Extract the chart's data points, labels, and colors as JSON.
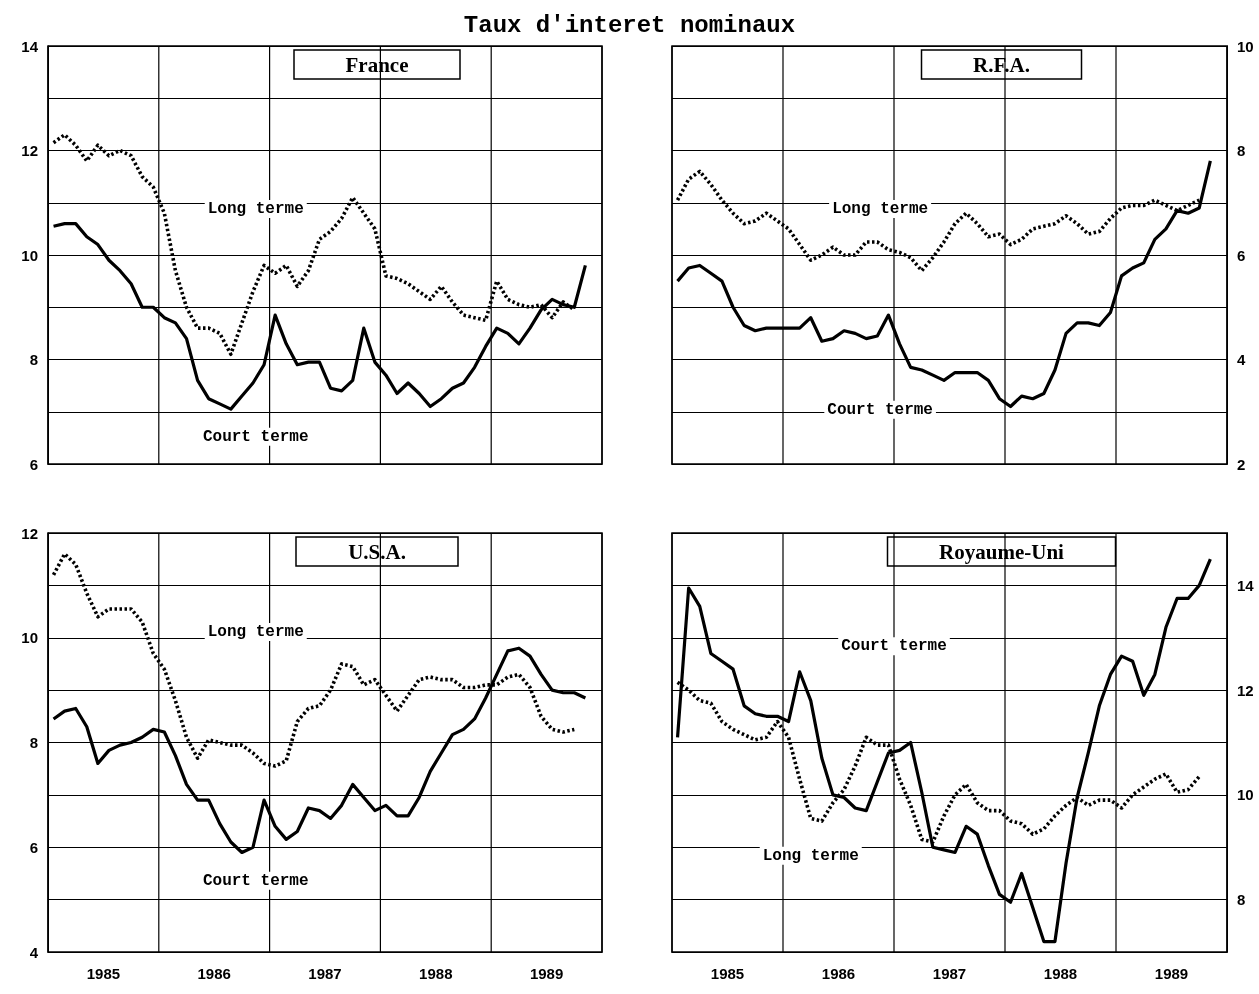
{
  "chart_data": [
    {
      "type": "line",
      "title": "France",
      "annotations": [
        "Taux d'interet nominaux"
      ],
      "x": [
        1985.05,
        1985.15,
        1985.25,
        1985.35,
        1985.45,
        1985.55,
        1985.65,
        1985.75,
        1985.85,
        1985.95,
        1986.05,
        1986.15,
        1986.25,
        1986.35,
        1986.45,
        1986.55,
        1986.65,
        1986.75,
        1986.85,
        1986.95,
        1987.05,
        1987.15,
        1987.25,
        1987.35,
        1987.45,
        1987.55,
        1987.65,
        1987.75,
        1987.85,
        1987.95,
        1988.05,
        1988.15,
        1988.25,
        1988.35,
        1988.45,
        1988.55,
        1988.65,
        1988.75,
        1988.85,
        1988.95,
        1989.05,
        1989.15,
        1989.25,
        1989.35,
        1989.45,
        1989.55,
        1989.65,
        1989.75,
        1989.85
      ],
      "series": [
        {
          "name": "Court terme",
          "color": "#000000",
          "line_style": "solid",
          "values": [
            10.55,
            10.6,
            10.6,
            10.35,
            10.2,
            9.9,
            9.7,
            9.45,
            9.0,
            9.0,
            8.8,
            8.7,
            8.4,
            7.6,
            7.25,
            7.15,
            7.05,
            7.3,
            7.55,
            7.9,
            8.85,
            8.3,
            7.9,
            7.95,
            7.95,
            7.45,
            7.4,
            7.6,
            8.6,
            7.95,
            7.7,
            7.35,
            7.55,
            7.35,
            7.1,
            7.25,
            7.45,
            7.55,
            7.85,
            8.25,
            8.6,
            8.5,
            8.3,
            8.6,
            8.95,
            9.15,
            9.05,
            9.0,
            9.8
          ]
        },
        {
          "name": "Long terme",
          "color": "#000000",
          "line_style": "dotted",
          "values": [
            12.15,
            12.3,
            12.1,
            11.8,
            12.1,
            11.9,
            12.0,
            11.9,
            11.5,
            11.3,
            10.8,
            9.7,
            9.0,
            8.6,
            8.6,
            8.5,
            8.1,
            8.7,
            9.3,
            9.8,
            9.65,
            9.8,
            9.4,
            9.7,
            10.3,
            10.45,
            10.7,
            11.1,
            10.8,
            10.5,
            9.6,
            9.55,
            9.45,
            9.3,
            9.15,
            9.4,
            9.1,
            8.85,
            8.8,
            8.75,
            9.5,
            9.15,
            9.05,
            9.0,
            9.05,
            8.8,
            9.1,
            8.95,
            null
          ]
        }
      ],
      "xlim": [
        1985,
        1990
      ],
      "xticks": [
        {
          "value": 1985,
          "label": null
        },
        {
          "value": 1986,
          "label": null
        },
        {
          "value": 1987,
          "label": null
        },
        {
          "value": 1988,
          "label": null
        },
        {
          "value": 1989,
          "label": null
        },
        {
          "value": 1990,
          "label": null
        }
      ],
      "ylim": [
        6,
        14
      ],
      "yticks": [
        6,
        {
          "value": 7,
          "label": null
        },
        8,
        {
          "value": 9,
          "label": null
        },
        10,
        {
          "value": 11,
          "label": null
        },
        12,
        {
          "value": 13,
          "label": null
        },
        14
      ],
      "grid": true,
      "tick_labels": "y"
    },
    {
      "type": "line",
      "title": "R.F.A.",
      "x": [
        1985.05,
        1985.15,
        1985.25,
        1985.35,
        1985.45,
        1985.55,
        1985.65,
        1985.75,
        1985.85,
        1985.95,
        1986.05,
        1986.15,
        1986.25,
        1986.35,
        1986.45,
        1986.55,
        1986.65,
        1986.75,
        1986.85,
        1986.95,
        1987.05,
        1987.15,
        1987.25,
        1987.35,
        1987.45,
        1987.55,
        1987.65,
        1987.75,
        1987.85,
        1987.95,
        1988.05,
        1988.15,
        1988.25,
        1988.35,
        1988.45,
        1988.55,
        1988.65,
        1988.75,
        1988.85,
        1988.95,
        1989.05,
        1989.15,
        1989.25,
        1989.35,
        1989.45,
        1989.55,
        1989.65,
        1989.75,
        1989.85
      ],
      "series": [
        {
          "name": "Court terme",
          "color": "#000000",
          "line_style": "solid",
          "values": [
            5.5,
            5.75,
            5.8,
            5.65,
            5.5,
            5.0,
            4.65,
            4.55,
            4.6,
            4.6,
            4.6,
            4.6,
            4.8,
            4.35,
            4.4,
            4.55,
            4.5,
            4.4,
            4.45,
            4.85,
            4.3,
            3.85,
            3.8,
            3.7,
            3.6,
            3.75,
            3.75,
            3.75,
            3.6,
            3.25,
            3.1,
            3.3,
            3.25,
            3.35,
            3.8,
            4.5,
            4.7,
            4.7,
            4.65,
            4.9,
            5.6,
            5.75,
            5.85,
            6.3,
            6.5,
            6.85,
            6.8,
            6.9,
            7.8
          ]
        },
        {
          "name": "Long terme",
          "color": "#000000",
          "line_style": "dotted",
          "values": [
            7.05,
            7.45,
            7.6,
            7.35,
            7.05,
            6.8,
            6.6,
            6.65,
            6.8,
            6.65,
            6.5,
            6.2,
            5.9,
            6.0,
            6.15,
            6.0,
            6.0,
            6.25,
            6.25,
            6.1,
            6.05,
            5.95,
            5.7,
            5.95,
            6.25,
            6.6,
            6.8,
            6.6,
            6.35,
            6.4,
            6.2,
            6.3,
            6.5,
            6.55,
            6.6,
            6.75,
            6.6,
            6.4,
            6.45,
            6.7,
            6.9,
            6.95,
            6.95,
            7.05,
            6.95,
            6.85,
            6.95,
            7.05,
            null
          ]
        }
      ],
      "xlim": [
        1985,
        1990
      ],
      "xticks": [
        {
          "value": 1985,
          "label": null
        },
        {
          "value": 1986,
          "label": null
        },
        {
          "value": 1987,
          "label": null
        },
        {
          "value": 1988,
          "label": null
        },
        {
          "value": 1989,
          "label": null
        },
        {
          "value": 1990,
          "label": null
        }
      ],
      "ylim": [
        2,
        10
      ],
      "yticks": [
        2,
        {
          "value": 3,
          "label": null
        },
        4,
        {
          "value": 5,
          "label": null
        },
        6,
        {
          "value": 7,
          "label": null
        },
        8,
        {
          "value": 9,
          "label": null
        },
        10
      ],
      "grid": true,
      "tick_labels": "y"
    },
    {
      "type": "line",
      "title": "U.S.A.",
      "x": [
        1985.05,
        1985.15,
        1985.25,
        1985.35,
        1985.45,
        1985.55,
        1985.65,
        1985.75,
        1985.85,
        1985.95,
        1986.05,
        1986.15,
        1986.25,
        1986.35,
        1986.45,
        1986.55,
        1986.65,
        1986.75,
        1986.85,
        1986.95,
        1987.05,
        1987.15,
        1987.25,
        1987.35,
        1987.45,
        1987.55,
        1987.65,
        1987.75,
        1987.85,
        1987.95,
        1988.05,
        1988.15,
        1988.25,
        1988.35,
        1988.45,
        1988.55,
        1988.65,
        1988.75,
        1988.85,
        1988.95,
        1989.05,
        1989.15,
        1989.25,
        1989.35,
        1989.45,
        1989.55,
        1989.65,
        1989.75,
        1989.85
      ],
      "series": [
        {
          "name": "Court terme",
          "color": "#000000",
          "line_style": "solid",
          "values": [
            8.45,
            8.6,
            8.65,
            8.3,
            7.6,
            7.85,
            7.95,
            8.0,
            8.1,
            8.25,
            8.2,
            7.75,
            7.2,
            6.9,
            6.9,
            6.45,
            6.1,
            5.9,
            6.0,
            6.9,
            6.4,
            6.15,
            6.3,
            6.75,
            6.7,
            6.55,
            6.8,
            7.2,
            6.95,
            6.7,
            6.8,
            6.6,
            6.6,
            6.95,
            7.45,
            7.8,
            8.15,
            8.25,
            8.45,
            8.85,
            9.3,
            9.75,
            9.8,
            9.65,
            9.3,
            9.0,
            8.95,
            8.95,
            8.85
          ]
        },
        {
          "name": "Long terme",
          "color": "#000000",
          "line_style": "dotted",
          "values": [
            11.2,
            11.6,
            11.4,
            10.85,
            10.4,
            10.55,
            10.55,
            10.55,
            10.3,
            9.7,
            9.4,
            8.8,
            8.1,
            7.7,
            8.05,
            8.0,
            7.95,
            7.95,
            7.8,
            7.6,
            7.55,
            7.65,
            8.4,
            8.65,
            8.7,
            9.0,
            9.5,
            9.45,
            9.1,
            9.2,
            8.9,
            8.6,
            8.9,
            9.2,
            9.25,
            9.2,
            9.2,
            9.05,
            9.05,
            9.1,
            9.1,
            9.25,
            9.3,
            9.05,
            8.5,
            8.25,
            8.2,
            8.25,
            null
          ]
        }
      ],
      "xlim": [
        1985,
        1990
      ],
      "xticks": [
        {
          "value": 1985,
          "label": null
        },
        {
          "value": 1985.5,
          "label": "1985"
        },
        {
          "value": 1986,
          "label": null
        },
        {
          "value": 1986.5,
          "label": "1986"
        },
        {
          "value": 1987,
          "label": null
        },
        {
          "value": 1987.5,
          "label": "1987"
        },
        {
          "value": 1988,
          "label": null
        },
        {
          "value": 1988.5,
          "label": "1988"
        },
        {
          "value": 1989,
          "label": null
        },
        {
          "value": 1989.5,
          "label": "1989"
        },
        {
          "value": 1990,
          "label": null
        }
      ],
      "ylim": [
        4,
        12
      ],
      "yticks": [
        4,
        {
          "value": 5,
          "label": null
        },
        6,
        {
          "value": 7,
          "label": null
        },
        8,
        {
          "value": 9,
          "label": null
        },
        10,
        {
          "value": 11,
          "label": null
        },
        12
      ],
      "grid": true
    },
    {
      "type": "line",
      "title": "Royaume-Uni",
      "x": [
        1985.05,
        1985.15,
        1985.25,
        1985.35,
        1985.45,
        1985.55,
        1985.65,
        1985.75,
        1985.85,
        1985.95,
        1986.05,
        1986.15,
        1986.25,
        1986.35,
        1986.45,
        1986.55,
        1986.65,
        1986.75,
        1986.85,
        1986.95,
        1987.05,
        1987.15,
        1987.25,
        1987.35,
        1987.45,
        1987.55,
        1987.65,
        1987.75,
        1987.85,
        1987.95,
        1988.05,
        1988.15,
        1988.25,
        1988.35,
        1988.45,
        1988.55,
        1988.65,
        1988.75,
        1988.85,
        1988.95,
        1989.05,
        1989.15,
        1989.25,
        1989.35,
        1989.45,
        1989.55,
        1989.65,
        1989.75,
        1989.85
      ],
      "series": [
        {
          "name": "Court terme",
          "color": "#000000",
          "line_style": "solid",
          "values": [
            11.1,
            13.95,
            13.6,
            12.7,
            12.55,
            12.4,
            11.7,
            11.55,
            11.5,
            11.5,
            11.4,
            12.35,
            11.8,
            10.7,
            10.0,
            9.95,
            9.75,
            9.7,
            10.25,
            10.8,
            10.85,
            11.0,
            10.05,
            9.0,
            8.95,
            8.9,
            9.4,
            9.25,
            8.65,
            8.1,
            7.95,
            8.5,
            7.85,
            7.2,
            7.2,
            8.7,
            9.95,
            10.8,
            11.7,
            12.3,
            12.65,
            12.55,
            11.9,
            12.3,
            13.2,
            13.75,
            13.75,
            14.0,
            14.5
          ]
        },
        {
          "name": "Long terme",
          "color": "#000000",
          "line_style": "dotted",
          "values": [
            12.15,
            12.0,
            11.8,
            11.75,
            11.4,
            11.25,
            11.15,
            11.05,
            11.1,
            11.4,
            11.1,
            10.3,
            9.55,
            9.5,
            9.85,
            10.1,
            10.55,
            11.1,
            10.95,
            10.95,
            10.3,
            9.8,
            9.15,
            9.1,
            9.6,
            10.0,
            10.2,
            9.85,
            9.7,
            9.7,
            9.5,
            9.45,
            9.25,
            9.35,
            9.6,
            9.8,
            9.95,
            9.8,
            9.9,
            9.9,
            9.75,
            10.0,
            10.15,
            10.3,
            10.4,
            10.05,
            10.1,
            10.35,
            null
          ]
        }
      ],
      "xlim": [
        1985,
        1990
      ],
      "xticks": [
        {
          "value": 1985,
          "label": null
        },
        {
          "value": 1985.5,
          "label": "1985"
        },
        {
          "value": 1986,
          "label": null
        },
        {
          "value": 1986.5,
          "label": "1986"
        },
        {
          "value": 1987,
          "label": null
        },
        {
          "value": 1987.5,
          "label": "1987"
        },
        {
          "value": 1988,
          "label": null
        },
        {
          "value": 1988.5,
          "label": "1988"
        },
        {
          "value": 1989,
          "label": null
        },
        {
          "value": 1989.5,
          "label": "1989"
        },
        {
          "value": 1990,
          "label": null
        }
      ],
      "ylim": [
        7,
        15
      ],
      "yticks": [
        {
          "value": 7,
          "label": null
        },
        8,
        {
          "value": 9,
          "label": null
        },
        10,
        {
          "value": 11,
          "label": null
        },
        12,
        {
          "value": 13,
          "label": null
        },
        14,
        {
          "value": 15,
          "label": null
        }
      ],
      "grid": true
    }
  ]
}
